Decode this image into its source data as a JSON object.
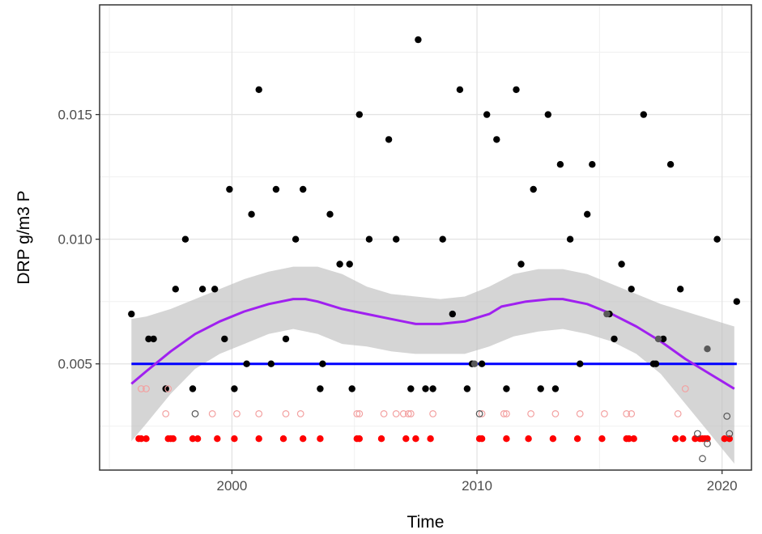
{
  "chart_data": {
    "type": "scatter",
    "title": "",
    "xlabel": "Time",
    "ylabel": "DRP g/m3 P",
    "xlim": [
      1994.6,
      2021.2
    ],
    "ylim": [
      0.00074,
      0.0194
    ],
    "x_ticks": [
      2000,
      2010,
      2020
    ],
    "x_tick_labels": [
      "2000",
      "2010",
      "2020"
    ],
    "y_ticks": [
      0.005,
      0.01,
      0.015
    ],
    "y_tick_labels": [
      "0.005",
      "0.010",
      "0.015"
    ],
    "grid": true,
    "legend": "none",
    "colors": {
      "black_points": "#000000",
      "gray_points": "#595959",
      "red_points": "#ff0000",
      "faded_red_open": "#f3a1a1",
      "open_gray": "#555555",
      "smooth_line": "#a020f0",
      "guideline": "#0000ff",
      "ribbon": "#bebebe"
    },
    "guideline_y": 0.005,
    "series": [
      {
        "style": "filled black",
        "points": [
          [
            1995.9,
            0.007
          ],
          [
            1996.6,
            0.006
          ],
          [
            1996.8,
            0.006
          ],
          [
            1997.3,
            0.004
          ],
          [
            1997.7,
            0.008
          ],
          [
            1998.1,
            0.01
          ],
          [
            1998.4,
            0.004
          ],
          [
            1998.8,
            0.008
          ],
          [
            1999.3,
            0.008
          ],
          [
            1999.7,
            0.006
          ],
          [
            1999.9,
            0.012
          ],
          [
            2000.1,
            0.004
          ],
          [
            2000.6,
            0.005
          ],
          [
            2000.8,
            0.011
          ],
          [
            2001.1,
            0.016
          ],
          [
            2001.6,
            0.005
          ],
          [
            2001.8,
            0.012
          ],
          [
            2002.2,
            0.006
          ],
          [
            2002.6,
            0.01
          ],
          [
            2002.9,
            0.012
          ],
          [
            2003.6,
            0.004
          ],
          [
            2003.7,
            0.005
          ],
          [
            2004.0,
            0.011
          ],
          [
            2004.4,
            0.009
          ],
          [
            2004.8,
            0.009
          ],
          [
            2004.9,
            0.004
          ],
          [
            2005.2,
            0.015
          ],
          [
            2005.6,
            0.01
          ],
          [
            2006.4,
            0.014
          ],
          [
            2006.7,
            0.01
          ],
          [
            2007.3,
            0.004
          ],
          [
            2007.6,
            0.018
          ],
          [
            2007.9,
            0.004
          ],
          [
            2008.2,
            0.004
          ],
          [
            2008.6,
            0.01
          ],
          [
            2009.0,
            0.007
          ],
          [
            2009.3,
            0.016
          ],
          [
            2009.6,
            0.004
          ],
          [
            2009.8,
            0.005
          ],
          [
            2010.2,
            0.005
          ],
          [
            2010.4,
            0.015
          ],
          [
            2010.8,
            0.014
          ],
          [
            2011.2,
            0.004
          ],
          [
            2011.6,
            0.016
          ],
          [
            2011.8,
            0.009
          ],
          [
            2012.3,
            0.012
          ],
          [
            2012.6,
            0.004
          ],
          [
            2012.9,
            0.015
          ],
          [
            2013.2,
            0.004
          ],
          [
            2013.4,
            0.013
          ],
          [
            2013.8,
            0.01
          ],
          [
            2014.2,
            0.005
          ],
          [
            2014.5,
            0.011
          ],
          [
            2014.7,
            0.013
          ],
          [
            2015.4,
            0.007
          ],
          [
            2015.6,
            0.006
          ],
          [
            2015.9,
            0.009
          ],
          [
            2016.3,
            0.008
          ],
          [
            2016.8,
            0.015
          ],
          [
            2017.2,
            0.005
          ],
          [
            2017.3,
            0.005
          ],
          [
            2017.6,
            0.006
          ],
          [
            2017.9,
            0.013
          ],
          [
            2018.3,
            0.008
          ],
          [
            2019.8,
            0.01
          ],
          [
            2020.6,
            0.0075
          ]
        ]
      },
      {
        "style": "filled gray",
        "points": [
          [
            2015.3,
            0.007
          ],
          [
            2019.4,
            0.0056
          ],
          [
            2017.4,
            0.006
          ],
          [
            2009.9,
            0.005
          ]
        ]
      },
      {
        "style": "filled red",
        "points": [
          [
            1996.2,
            0.002
          ],
          [
            1996.3,
            0.002
          ],
          [
            1996.5,
            0.002
          ],
          [
            1997.4,
            0.002
          ],
          [
            1997.5,
            0.002
          ],
          [
            1997.6,
            0.002
          ],
          [
            1998.4,
            0.002
          ],
          [
            1998.6,
            0.002
          ],
          [
            1999.4,
            0.002
          ],
          [
            2000.1,
            0.002
          ],
          [
            2001.1,
            0.002
          ],
          [
            2002.1,
            0.002
          ],
          [
            2002.9,
            0.002
          ],
          [
            2003.6,
            0.002
          ],
          [
            2005.1,
            0.002
          ],
          [
            2005.2,
            0.002
          ],
          [
            2006.1,
            0.002
          ],
          [
            2007.1,
            0.002
          ],
          [
            2007.5,
            0.002
          ],
          [
            2008.1,
            0.002
          ],
          [
            2010.1,
            0.002
          ],
          [
            2010.2,
            0.002
          ],
          [
            2011.2,
            0.002
          ],
          [
            2012.1,
            0.002
          ],
          [
            2013.1,
            0.002
          ],
          [
            2014.1,
            0.002
          ],
          [
            2015.1,
            0.002
          ],
          [
            2016.1,
            0.002
          ],
          [
            2016.2,
            0.002
          ],
          [
            2016.4,
            0.002
          ],
          [
            2018.1,
            0.002
          ],
          [
            2018.4,
            0.002
          ],
          [
            2018.9,
            0.002
          ],
          [
            2019.1,
            0.002
          ],
          [
            2019.2,
            0.002
          ],
          [
            2019.3,
            0.002
          ],
          [
            2019.4,
            0.002
          ],
          [
            2020.1,
            0.002
          ],
          [
            2020.3,
            0.002
          ]
        ]
      },
      {
        "style": "open faded red",
        "points": [
          [
            1996.3,
            0.004
          ],
          [
            1996.5,
            0.004
          ],
          [
            1997.4,
            0.004
          ],
          [
            1997.3,
            0.003
          ],
          [
            1999.2,
            0.003
          ],
          [
            2000.2,
            0.003
          ],
          [
            2001.1,
            0.003
          ],
          [
            2002.2,
            0.003
          ],
          [
            2002.8,
            0.003
          ],
          [
            2005.1,
            0.003
          ],
          [
            2005.2,
            0.003
          ],
          [
            2006.2,
            0.003
          ],
          [
            2006.7,
            0.003
          ],
          [
            2007.0,
            0.003
          ],
          [
            2007.2,
            0.003
          ],
          [
            2007.3,
            0.003
          ],
          [
            2008.2,
            0.003
          ],
          [
            2010.2,
            0.003
          ],
          [
            2011.1,
            0.003
          ],
          [
            2011.2,
            0.003
          ],
          [
            2012.2,
            0.003
          ],
          [
            2013.2,
            0.003
          ],
          [
            2014.2,
            0.003
          ],
          [
            2015.2,
            0.003
          ],
          [
            2016.1,
            0.003
          ],
          [
            2016.3,
            0.003
          ],
          [
            2018.2,
            0.003
          ],
          [
            2018.5,
            0.004
          ]
        ]
      },
      {
        "style": "open gray",
        "points": [
          [
            1998.5,
            0.003
          ],
          [
            2010.1,
            0.003
          ],
          [
            2019.0,
            0.0022
          ],
          [
            2019.2,
            0.0012
          ],
          [
            2019.4,
            0.0018
          ],
          [
            2020.2,
            0.0029
          ],
          [
            2020.3,
            0.0022
          ]
        ]
      }
    ],
    "smooth_line": {
      "x": [
        1995.9,
        1996.5,
        1997.5,
        1998.5,
        1999.5,
        2000.5,
        2001.5,
        2002.5,
        2003.0,
        2003.5,
        2004.5,
        2005.5,
        2006.5,
        2007.5,
        2008.5,
        2009.5,
        2010.5,
        2011.0,
        2012.0,
        2013.0,
        2013.5,
        2014.5,
        2015.5,
        2016.5,
        2017.5,
        2018.5,
        2019.5,
        2020.5
      ],
      "y": [
        0.0042,
        0.0047,
        0.0055,
        0.0062,
        0.0067,
        0.0071,
        0.0074,
        0.0076,
        0.0076,
        0.0075,
        0.0072,
        0.007,
        0.0068,
        0.0066,
        0.0066,
        0.0067,
        0.007,
        0.0073,
        0.0075,
        0.0076,
        0.0076,
        0.0074,
        0.007,
        0.0065,
        0.0059,
        0.0052,
        0.0046,
        0.004
      ]
    },
    "ribbon": {
      "x": [
        1995.9,
        1996.5,
        1997.5,
        1998.5,
        1999.5,
        2000.5,
        2001.5,
        2002.5,
        2003.5,
        2004.5,
        2005.5,
        2006.5,
        2007.5,
        2008.5,
        2009.5,
        2010.5,
        2011.5,
        2012.5,
        2013.5,
        2014.5,
        2015.5,
        2016.5,
        2017.5,
        2018.5,
        2019.5,
        2020.5
      ],
      "upper": [
        0.0068,
        0.0069,
        0.0072,
        0.0076,
        0.008,
        0.0084,
        0.0087,
        0.0089,
        0.0089,
        0.0086,
        0.0081,
        0.0078,
        0.0077,
        0.0076,
        0.0077,
        0.0081,
        0.0086,
        0.0088,
        0.0088,
        0.0086,
        0.0082,
        0.0078,
        0.0074,
        0.0071,
        0.0068,
        0.0065
      ],
      "lower": [
        0.0019,
        0.0026,
        0.0038,
        0.0048,
        0.0054,
        0.0058,
        0.0062,
        0.0064,
        0.0062,
        0.0058,
        0.0057,
        0.0055,
        0.0054,
        0.0054,
        0.0054,
        0.0057,
        0.0061,
        0.0063,
        0.0064,
        0.0062,
        0.0059,
        0.0054,
        0.0046,
        0.0034,
        0.0022,
        0.001
      ]
    }
  }
}
